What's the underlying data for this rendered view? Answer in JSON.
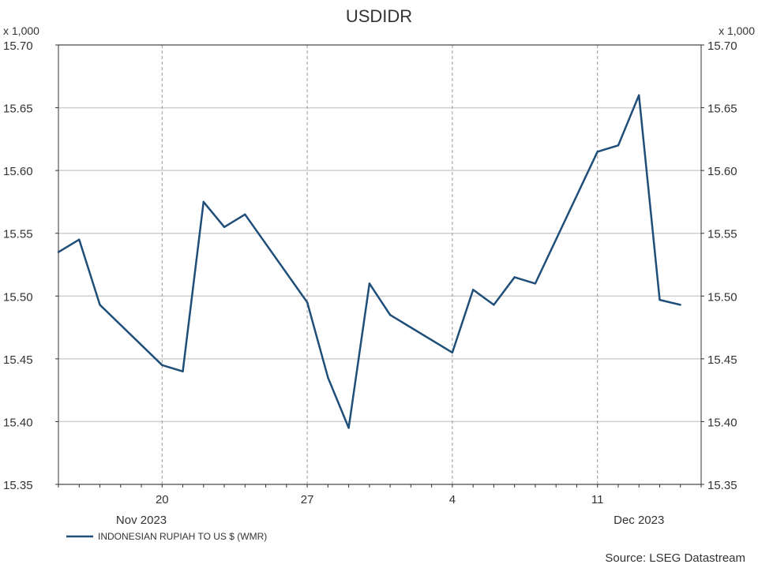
{
  "chart_data": {
    "type": "line",
    "title": "USDIDR",
    "unit_label_left": "x 1,000",
    "unit_label_right": "x 1,000",
    "ylim": [
      15.35,
      15.7
    ],
    "y_ticks": [
      "15.70",
      "15.65",
      "15.60",
      "15.55",
      "15.50",
      "15.45",
      "15.40",
      "15.35"
    ],
    "y_tick_values": [
      15.7,
      15.65,
      15.6,
      15.55,
      15.5,
      15.45,
      15.4,
      15.35
    ],
    "xlim": [
      "2023-11-15",
      "2023-12-16"
    ],
    "x_ticks": [
      {
        "label": "20",
        "date": "2023-11-20"
      },
      {
        "label": "27",
        "date": "2023-11-27"
      },
      {
        "label": "4",
        "date": "2023-12-04"
      },
      {
        "label": "11",
        "date": "2023-12-11"
      }
    ],
    "month_labels": [
      {
        "label": "Nov 2023",
        "date": "2023-11-19"
      },
      {
        "label": "Dec 2023",
        "date": "2023-12-13"
      }
    ],
    "grid": true,
    "legend_position": "bottom-left",
    "series": [
      {
        "name": "INDONESIAN RUPIAH TO US $ (WMR)",
        "color": "#1f4e79",
        "points": [
          {
            "x": "2023-11-15",
            "y": 15.535
          },
          {
            "x": "2023-11-16",
            "y": 15.545
          },
          {
            "x": "2023-11-17",
            "y": 15.493
          },
          {
            "x": "2023-11-20",
            "y": 15.445
          },
          {
            "x": "2023-11-21",
            "y": 15.44
          },
          {
            "x": "2023-11-22",
            "y": 15.575
          },
          {
            "x": "2023-11-23",
            "y": 15.555
          },
          {
            "x": "2023-11-24",
            "y": 15.565
          },
          {
            "x": "2023-11-27",
            "y": 15.495
          },
          {
            "x": "2023-11-28",
            "y": 15.435
          },
          {
            "x": "2023-11-29",
            "y": 15.395
          },
          {
            "x": "2023-11-30",
            "y": 15.51
          },
          {
            "x": "2023-12-01",
            "y": 15.485
          },
          {
            "x": "2023-12-04",
            "y": 15.455
          },
          {
            "x": "2023-12-05",
            "y": 15.505
          },
          {
            "x": "2023-12-06",
            "y": 15.493
          },
          {
            "x": "2023-12-07",
            "y": 15.515
          },
          {
            "x": "2023-12-08",
            "y": 15.51
          },
          {
            "x": "2023-12-11",
            "y": 15.615
          },
          {
            "x": "2023-12-12",
            "y": 15.62
          },
          {
            "x": "2023-12-13",
            "y": 15.66
          },
          {
            "x": "2023-12-14",
            "y": 15.497
          },
          {
            "x": "2023-12-15",
            "y": 15.493
          }
        ]
      }
    ],
    "source": "Source: LSEG Datastream"
  }
}
